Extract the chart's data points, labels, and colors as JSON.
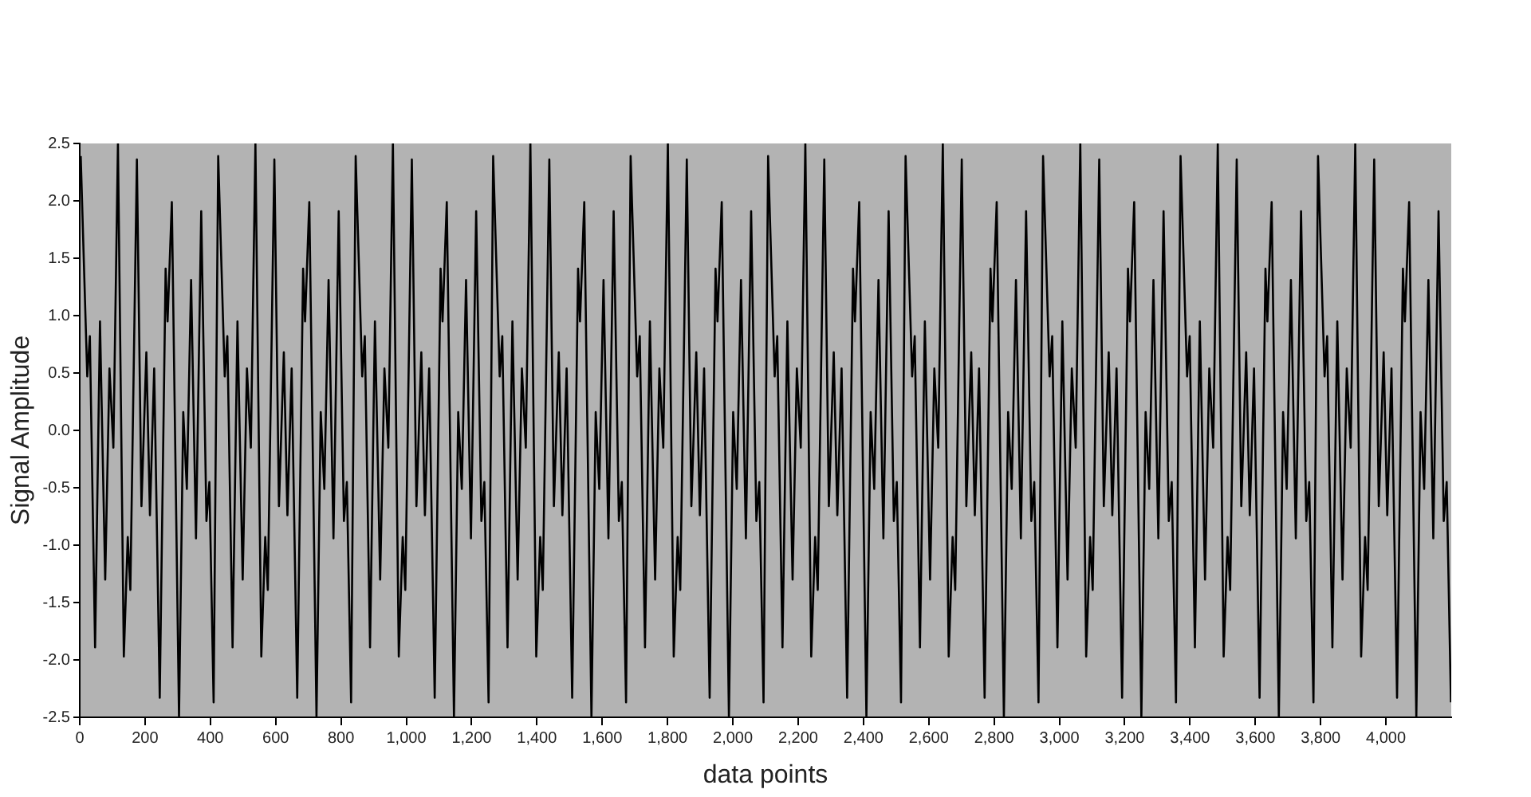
{
  "chart_data": {
    "type": "line",
    "xlabel": "data points",
    "ylabel": "Signal Amplitude",
    "xlim": [
      0,
      4200
    ],
    "ylim": [
      -2.5,
      2.5
    ],
    "xticks": [
      0,
      200,
      400,
      600,
      800,
      {
        "value": 1000,
        "label": "1,000"
      },
      {
        "value": 1200,
        "label": "1,200"
      },
      {
        "value": 1400,
        "label": "1,400"
      },
      {
        "value": 1600,
        "label": "1,600"
      },
      {
        "value": 1800,
        "label": "1,800"
      },
      {
        "value": 2000,
        "label": "2,000"
      },
      {
        "value": 2200,
        "label": "2,200"
      },
      {
        "value": 2400,
        "label": "2,400"
      },
      {
        "value": 2600,
        "label": "2,600"
      },
      {
        "value": 2800,
        "label": "2,800"
      },
      {
        "value": 3000,
        "label": "3,000"
      },
      {
        "value": 3200,
        "label": "3,200"
      },
      {
        "value": 3400,
        "label": "3,400"
      },
      {
        "value": 3600,
        "label": "3,600"
      },
      {
        "value": 3800,
        "label": "3,800"
      },
      {
        "value": 4000,
        "label": "4,000"
      }
    ],
    "yticks": [
      -2.5,
      {
        "value": -2,
        "label": "-2.0"
      },
      -1.5,
      {
        "value": -1,
        "label": "-1.0"
      },
      -0.5,
      {
        "value": 0,
        "label": "0.0"
      },
      0.5,
      {
        "value": 1,
        "label": "1.0"
      },
      1.5,
      {
        "value": 2,
        "label": "2.0"
      },
      2.5
    ],
    "legend": false,
    "series": [
      {
        "color": "#000000",
        "x": [
          3,
          23,
          31,
          47,
          62,
          78,
          91,
          103,
          117,
          135,
          147,
          155,
          175,
          189,
          204,
          215,
          228,
          245,
          263,
          269,
          282,
          304,
          317,
          328,
          341,
          356,
          372,
          388,
          397,
          410,
          424,
          444,
          452,
          468,
          483,
          499,
          512,
          524,
          538,
          556,
          568,
          576,
          596,
          610,
          625,
          636,
          649,
          666,
          684,
          690,
          703,
          725,
          738,
          749,
          762,
          777,
          793,
          809,
          818,
          831,
          845,
          865,
          873,
          889,
          904,
          920,
          933,
          945,
          959,
          977,
          989,
          997,
          1017,
          1031,
          1046,
          1057,
          1070,
          1087,
          1105,
          1111,
          1124,
          1146,
          1159,
          1170,
          1183,
          1198,
          1214,
          1230,
          1239,
          1252,
          1266,
          1286,
          1294,
          1310,
          1325,
          1341,
          1354,
          1366,
          1380,
          1398,
          1410,
          1418,
          1438,
          1452,
          1467,
          1478,
          1491,
          1508,
          1526,
          1532,
          1545,
          1567,
          1580,
          1591,
          1604,
          1619,
          1635,
          1651,
          1660,
          1673,
          1687,
          1707,
          1715,
          1731,
          1746,
          1762,
          1775,
          1787,
          1801,
          1819,
          1831,
          1839,
          1859,
          1873,
          1888,
          1899,
          1912,
          1929,
          1947,
          1953,
          1966,
          1988,
          2001,
          2012,
          2025,
          2040,
          2056,
          2072,
          2081,
          2094,
          2108,
          2128,
          2136,
          2152,
          2167,
          2183,
          2196,
          2208,
          2222,
          2240,
          2252,
          2260,
          2280,
          2294,
          2309,
          2320,
          2333,
          2350,
          2368,
          2374,
          2387,
          2409,
          2422,
          2433,
          2446,
          2461,
          2477,
          2493,
          2502,
          2515,
          2529,
          2549,
          2557,
          2573,
          2588,
          2604,
          2617,
          2629,
          2643,
          2661,
          2673,
          2681,
          2701,
          2715,
          2730,
          2741,
          2754,
          2771,
          2789,
          2795,
          2808,
          2830,
          2843,
          2854,
          2867,
          2882,
          2898,
          2914,
          2923,
          2936,
          2950,
          2970,
          2978,
          2994,
          3009,
          3025,
          3038,
          3050,
          3064,
          3082,
          3094,
          3102,
          3122,
          3136,
          3151,
          3162,
          3175,
          3192,
          3210,
          3216,
          3229,
          3251,
          3264,
          3275,
          3288,
          3303,
          3319,
          3335,
          3344,
          3357,
          3371,
          3391,
          3399,
          3415,
          3430,
          3446,
          3459,
          3471,
          3485,
          3503,
          3515,
          3523,
          3543,
          3557,
          3572,
          3583,
          3596,
          3613,
          3631,
          3637,
          3650,
          3672,
          3685,
          3696,
          3709,
          3724,
          3740,
          3756,
          3765,
          3778,
          3792,
          3812,
          3820,
          3836,
          3851,
          3867,
          3880,
          3892,
          3906,
          3924,
          3936,
          3944,
          3964,
          3978,
          3993,
          4004,
          4017,
          4034,
          4052,
          4058,
          4071,
          4093,
          4106,
          4117,
          4130,
          4145,
          4161,
          4177,
          4186,
          4199
        ],
        "values": [
          2.39,
          0.47,
          0.82,
          -1.89,
          0.95,
          -1.3,
          0.54,
          -0.15,
          2.5,
          -1.97,
          -0.93,
          -1.39,
          2.36,
          -0.66,
          0.68,
          -0.74,
          0.54,
          -2.33,
          1.41,
          0.95,
          1.99,
          -2.5,
          0.16,
          -0.51,
          1.31,
          -0.94,
          1.91,
          -0.79,
          -0.45,
          -2.37,
          2.39,
          0.47,
          0.82,
          -1.89,
          0.95,
          -1.3,
          0.54,
          -0.15,
          2.5,
          -1.97,
          -0.93,
          -1.39,
          2.36,
          -0.66,
          0.68,
          -0.74,
          0.54,
          -2.33,
          1.41,
          0.95,
          1.99,
          -2.5,
          0.16,
          -0.51,
          1.31,
          -0.94,
          1.91,
          -0.79,
          -0.45,
          -2.37,
          2.39,
          0.47,
          0.82,
          -1.89,
          0.95,
          -1.3,
          0.54,
          -0.15,
          2.5,
          -1.97,
          -0.93,
          -1.39,
          2.36,
          -0.66,
          0.68,
          -0.74,
          0.54,
          -2.33,
          1.41,
          0.95,
          1.99,
          -2.5,
          0.16,
          -0.51,
          1.31,
          -0.94,
          1.91,
          -0.79,
          -0.45,
          -2.37,
          2.39,
          0.47,
          0.82,
          -1.89,
          0.95,
          -1.3,
          0.54,
          -0.15,
          2.5,
          -1.97,
          -0.93,
          -1.39,
          2.36,
          -0.66,
          0.68,
          -0.74,
          0.54,
          -2.33,
          1.41,
          0.95,
          1.99,
          -2.5,
          0.16,
          -0.51,
          1.31,
          -0.94,
          1.91,
          -0.79,
          -0.45,
          -2.37,
          2.39,
          0.47,
          0.82,
          -1.89,
          0.95,
          -1.3,
          0.54,
          -0.15,
          2.5,
          -1.97,
          -0.93,
          -1.39,
          2.36,
          -0.66,
          0.68,
          -0.74,
          0.54,
          -2.33,
          1.41,
          0.95,
          1.99,
          -2.5,
          0.16,
          -0.51,
          1.31,
          -0.94,
          1.91,
          -0.79,
          -0.45,
          -2.37,
          2.39,
          0.47,
          0.82,
          -1.89,
          0.95,
          -1.3,
          0.54,
          -0.15,
          2.5,
          -1.97,
          -0.93,
          -1.39,
          2.36,
          -0.66,
          0.68,
          -0.74,
          0.54,
          -2.33,
          1.41,
          0.95,
          1.99,
          -2.5,
          0.16,
          -0.51,
          1.31,
          -0.94,
          1.91,
          -0.79,
          -0.45,
          -2.37,
          2.39,
          0.47,
          0.82,
          -1.89,
          0.95,
          -1.3,
          0.54,
          -0.15,
          2.5,
          -1.97,
          -0.93,
          -1.39,
          2.36,
          -0.66,
          0.68,
          -0.74,
          0.54,
          -2.33,
          1.41,
          0.95,
          1.99,
          -2.5,
          0.16,
          -0.51,
          1.31,
          -0.94,
          1.91,
          -0.79,
          -0.45,
          -2.37,
          2.39,
          0.47,
          0.82,
          -1.89,
          0.95,
          -1.3,
          0.54,
          -0.15,
          2.5,
          -1.97,
          -0.93,
          -1.39,
          2.36,
          -0.66,
          0.68,
          -0.74,
          0.54,
          -2.33,
          1.41,
          0.95,
          1.99,
          -2.5,
          0.16,
          -0.51,
          1.31,
          -0.94,
          1.91,
          -0.79,
          -0.45,
          -2.37,
          2.39,
          0.47,
          0.82,
          -1.89,
          0.95,
          -1.3,
          0.54,
          -0.15,
          2.5,
          -1.97,
          -0.93,
          -1.39,
          2.36,
          -0.66,
          0.68,
          -0.74,
          0.54,
          -2.33,
          1.41,
          0.95,
          1.99,
          -2.5,
          0.16,
          -0.51,
          1.31,
          -0.94,
          1.91,
          -0.79,
          -0.45,
          -2.37,
          2.39,
          0.47,
          0.82,
          -1.89,
          0.95,
          -1.3,
          0.54,
          -0.15,
          2.5,
          -1.97,
          -0.93,
          -1.39,
          2.36,
          -0.66,
          0.68,
          -0.74,
          0.54,
          -2.33,
          1.41,
          0.95,
          1.99,
          -2.5,
          0.16,
          -0.51,
          1.31,
          -0.94,
          1.91,
          -0.79,
          -0.45,
          -2.37
        ]
      }
    ]
  }
}
